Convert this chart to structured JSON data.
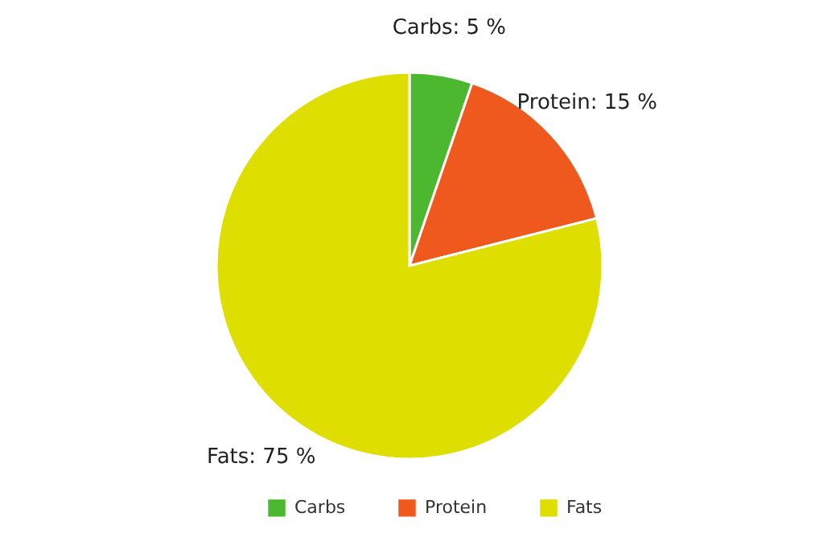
{
  "chart_data": {
    "type": "pie",
    "categories": [
      "Carbs",
      "Protein",
      "Fats"
    ],
    "values": [
      5,
      15,
      75
    ],
    "colors": [
      "#4cb82f",
      "#f0591e",
      "#dede00"
    ],
    "value_labels": [
      "Carbs: 5 %",
      "Protein: 15 %",
      "Fats: 75 %"
    ],
    "legend": "bottom"
  }
}
